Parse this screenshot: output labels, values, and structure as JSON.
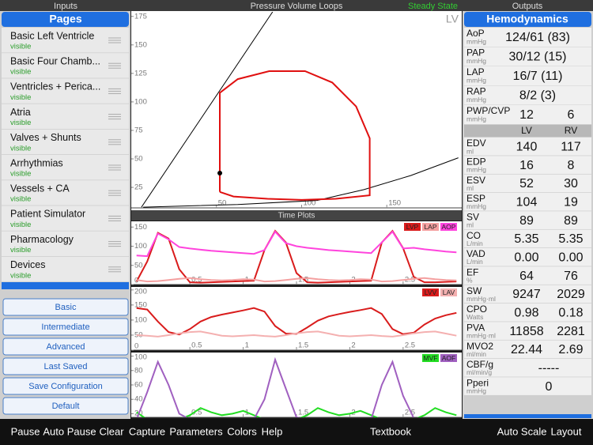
{
  "header": {
    "inputs": "Inputs",
    "title": "Pressure Volume Loops",
    "status": "Steady State",
    "outputs": "Outputs",
    "time_title": "Time Plots"
  },
  "inputs": {
    "title": "Pages",
    "pages": [
      {
        "name": "Basic Left Ventricle",
        "status": "visible"
      },
      {
        "name": "Basic Four Chamb...",
        "status": "visible"
      },
      {
        "name": "Ventricles + Perica...",
        "status": "visible"
      },
      {
        "name": "Atria",
        "status": "visible"
      },
      {
        "name": "Valves + Shunts",
        "status": "visible"
      },
      {
        "name": "Arrhythmias",
        "status": "visible"
      },
      {
        "name": "Vessels + CA",
        "status": "visible"
      },
      {
        "name": "Patient Simulator",
        "status": "visible"
      },
      {
        "name": "Pharmacology",
        "status": "visible"
      },
      {
        "name": "Devices",
        "status": "visible"
      }
    ],
    "buttons": [
      "Basic",
      "Intermediate",
      "Advanced",
      "Last Saved",
      "Save Configuration",
      "Default"
    ]
  },
  "hemodynamics": {
    "title": "Hemodynamics",
    "columns": [
      "LV",
      "RV"
    ],
    "rows": [
      {
        "label": "AoP",
        "unit": "mmHg",
        "values": [
          "124/61 (83)"
        ]
      },
      {
        "label": "PAP",
        "unit": "mmHg",
        "values": [
          "30/12 (15)"
        ]
      },
      {
        "label": "LAP",
        "unit": "mmHg",
        "values": [
          "16/7 (11)"
        ]
      },
      {
        "label": "RAP",
        "unit": "mmHg",
        "values": [
          "8/2 (3)"
        ]
      },
      {
        "label": "PWP/CVP",
        "unit": "mmHg",
        "values": [
          "12",
          "6"
        ]
      },
      {
        "label": "EDV",
        "unit": "ml",
        "values": [
          "140",
          "117"
        ]
      },
      {
        "label": "EDP",
        "unit": "mmHg",
        "values": [
          "16",
          "8"
        ]
      },
      {
        "label": "ESV",
        "unit": "ml",
        "values": [
          "52",
          "30"
        ]
      },
      {
        "label": "ESP",
        "unit": "mmHg",
        "values": [
          "104",
          "19"
        ]
      },
      {
        "label": "SV",
        "unit": "ml",
        "values": [
          "89",
          "89"
        ]
      },
      {
        "label": "CO",
        "unit": "L/min",
        "values": [
          "5.35",
          "5.35"
        ]
      },
      {
        "label": "VAD",
        "unit": "L/min",
        "values": [
          "0.00",
          "0.00"
        ]
      },
      {
        "label": "EF",
        "unit": "%",
        "values": [
          "64",
          "76"
        ]
      },
      {
        "label": "SW",
        "unit": "mmHg·ml",
        "values": [
          "9247",
          "2029"
        ]
      },
      {
        "label": "CPO",
        "unit": "Watts",
        "values": [
          "0.98",
          "0.18"
        ]
      },
      {
        "label": "PVA",
        "unit": "mmHg·ml",
        "values": [
          "11858",
          "2281"
        ]
      },
      {
        "label": "MVO2",
        "unit": "ml/min",
        "values": [
          "22.44",
          "2.69"
        ]
      },
      {
        "label": "CBF/g",
        "unit": "ml/min/g",
        "values": [
          "-----"
        ]
      },
      {
        "label": "Pperi",
        "unit": "mmHg",
        "values": [
          "0"
        ]
      }
    ]
  },
  "toolbar": [
    "Pause",
    "Auto Pause",
    "Clear",
    "Capture",
    "Parameters",
    "Colors",
    "Help",
    "Textbook",
    "Auto Scale",
    "Layout"
  ],
  "chart_data": [
    {
      "type": "line",
      "annotation": "LV",
      "xlim": [
        0,
        194
      ],
      "ylim": [
        7,
        179
      ],
      "xticks": [
        50,
        100,
        150
      ],
      "yticks": [
        25,
        50,
        75,
        100,
        125,
        150,
        175
      ],
      "series": [
        {
          "color": "#000000",
          "x": [
            6,
            83
          ],
          "values": [
            7.6,
            179
          ]
        },
        {
          "color": "#000000",
          "x": [
            7,
            62.5,
            109,
            136.6,
            164,
            192
          ],
          "values": [
            7.6,
            10,
            13.5,
            23,
            35.4,
            51
          ]
        },
        {
          "color": "#e01010",
          "x": [
            52,
            60,
            80,
            100,
            120,
            140,
            140,
            132,
            118,
            102,
            81,
            62.5,
            52,
            52
          ],
          "values": [
            21,
            17,
            15,
            14,
            15,
            18,
            68,
            96,
            117,
            127,
            127,
            120,
            108,
            21
          ]
        },
        {
          "color": "#000000",
          "markers": true,
          "x": [
            52
          ],
          "values": [
            37.5
          ]
        }
      ]
    },
    {
      "type": "line",
      "x": [
        0,
        0.1,
        0.2,
        0.3,
        0.4,
        0.5,
        0.6,
        0.7,
        0.8,
        0.9,
        1,
        1.1,
        1.2,
        1.3,
        1.4,
        1.5,
        1.6,
        1.7,
        1.8,
        1.9,
        2,
        2.1,
        2.2,
        2.3,
        2.4,
        2.5,
        2.6,
        2.7,
        2.8,
        2.9,
        3
      ],
      "xlim": [
        -0.05,
        3.05
      ],
      "ylim": [
        0,
        165
      ],
      "xticks": [
        0.5,
        1,
        1.5,
        2,
        2.5
      ],
      "yticks": [
        0,
        50,
        100,
        150
      ],
      "series": [
        {
          "name": "LVP",
          "color": "#d91c1c",
          "values": [
            8,
            60,
            135,
            120,
            40,
            6,
            5,
            6,
            7,
            8,
            9,
            10,
            90,
            140,
            110,
            30,
            6,
            5,
            6,
            7,
            8,
            9,
            10,
            110,
            140,
            95,
            20,
            6,
            6,
            7,
            8
          ]
        },
        {
          "name": "LAP",
          "color": "#f4a0a0",
          "values": [
            12,
            8,
            9,
            12,
            15,
            17,
            14,
            12,
            11,
            12,
            14,
            13,
            8,
            9,
            12,
            15,
            17,
            14,
            12,
            11,
            12,
            14,
            13,
            8,
            9,
            12,
            15,
            17,
            14,
            12,
            11
          ]
        },
        {
          "name": "AOP",
          "color": "#ff44dd",
          "values": [
            76,
            74,
            133,
            118,
            98,
            94,
            91,
            88,
            86,
            84,
            82,
            80,
            90,
            138,
            108,
            100,
            96,
            93,
            90,
            88,
            86,
            84,
            82,
            110,
            138,
            94,
            96,
            92,
            89,
            86,
            84
          ]
        }
      ]
    },
    {
      "type": "line",
      "x": [
        0,
        0.1,
        0.2,
        0.3,
        0.4,
        0.5,
        0.6,
        0.7,
        0.8,
        0.9,
        1,
        1.1,
        1.2,
        1.3,
        1.4,
        1.5,
        1.6,
        1.7,
        1.8,
        1.9,
        2,
        2.1,
        2.2,
        2.3,
        2.4,
        2.5,
        2.6,
        2.7,
        2.8,
        2.9,
        3
      ],
      "xlim": [
        -0.05,
        3.05
      ],
      "ylim": [
        0,
        210
      ],
      "xticks": [
        0.5,
        1,
        1.5,
        2,
        2.5
      ],
      "yticks": [
        0,
        50,
        100,
        150,
        200
      ],
      "series": [
        {
          "name": "LVV",
          "color": "#d91c1c",
          "values": [
            140,
            135,
            95,
            60,
            52,
            70,
            95,
            110,
            118,
            125,
            132,
            140,
            128,
            80,
            55,
            54,
            75,
            98,
            112,
            120,
            127,
            133,
            140,
            120,
            70,
            53,
            58,
            85,
            105,
            116,
            124
          ]
        },
        {
          "name": "LAV",
          "color": "#f4b0b0",
          "values": [
            50,
            48,
            45,
            50,
            56,
            60,
            62,
            55,
            48,
            46,
            48,
            50,
            47,
            45,
            50,
            56,
            60,
            62,
            55,
            48,
            46,
            48,
            50,
            47,
            45,
            50,
            56,
            60,
            62,
            55,
            48
          ]
        }
      ]
    },
    {
      "type": "line",
      "x": [
        0,
        0.1,
        0.2,
        0.3,
        0.4,
        0.5,
        0.6,
        0.7,
        0.8,
        0.9,
        1,
        1.1,
        1.2,
        1.3,
        1.4,
        1.5,
        1.6,
        1.7,
        1.8,
        1.9,
        2,
        2.1,
        2.2,
        2.3,
        2.4,
        2.5,
        2.6,
        2.7,
        2.8,
        2.9,
        3
      ],
      "xlim": [
        -0.05,
        3.05
      ],
      "ylim": [
        15,
        105
      ],
      "xticks": [
        0.5,
        1,
        1.5,
        2,
        2.5
      ],
      "yticks": [
        20,
        40,
        60,
        80,
        100
      ],
      "series": [
        {
          "name": "MVF",
          "color": "#22dd22",
          "values": [
            22,
            12,
            12,
            12,
            12,
            18,
            28,
            22,
            18,
            20,
            24,
            18,
            12,
            12,
            12,
            12,
            18,
            28,
            22,
            18,
            20,
            24,
            18,
            12,
            12,
            12,
            12,
            18,
            28,
            22,
            18
          ]
        },
        {
          "name": "AOF",
          "color": "#a060c0",
          "values": [
            12,
            50,
            92,
            60,
            20,
            12,
            12,
            12,
            12,
            12,
            12,
            12,
            40,
            95,
            55,
            15,
            12,
            12,
            12,
            12,
            12,
            12,
            12,
            60,
            92,
            45,
            14,
            12,
            12,
            12,
            12
          ]
        }
      ]
    }
  ]
}
